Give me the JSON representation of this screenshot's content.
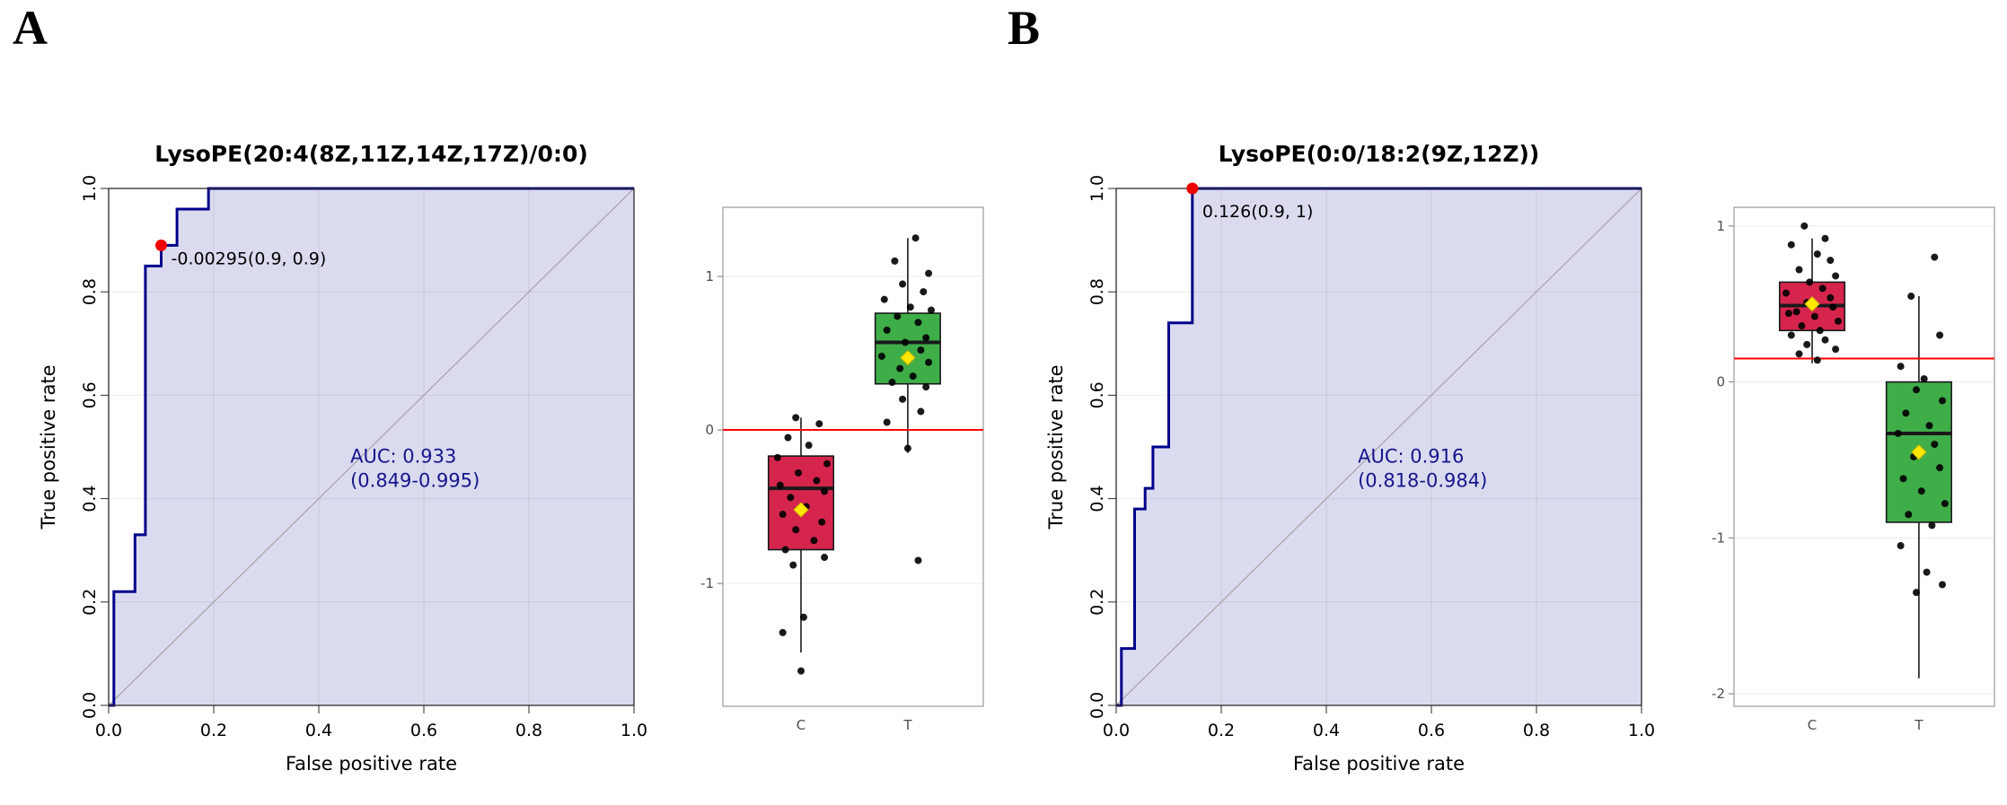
{
  "figure": {
    "background": "#ffffff"
  },
  "panels": [
    {
      "label": "A"
    },
    {
      "label": "B"
    }
  ],
  "colors": {
    "roc_line": "#00008b",
    "roc_fill": "#dbdbf0",
    "diagonal_line": "#a8a8a8",
    "grid_line": "rgba(0,0,0,0.08)",
    "cutoff_point": "#f00000",
    "auc_text": "#16168c",
    "box_border": "#999999",
    "box_tick_text": "#4d4d4d",
    "group_c_fill": "#d6254d",
    "group_t_fill": "#3fae49",
    "mean_diamond": "#ffe800",
    "reference_line": "#ff0000",
    "point_fill": "#000000"
  },
  "chart_data": [
    {
      "type": "line",
      "subtype": "roc",
      "panel": "A",
      "title": "LysoPE(20:4(8Z,11Z,14Z,17Z)/0:0)",
      "xlabel": "False positive rate",
      "ylabel": "True positive rate",
      "xlim": [
        0,
        1
      ],
      "ylim": [
        0,
        1
      ],
      "xticks": [
        0,
        0.2,
        0.4,
        0.6,
        0.8,
        1
      ],
      "xtick_labels": [
        "0.0",
        "0.2",
        "0.4",
        "0.6",
        "0.8",
        "1.0"
      ],
      "yticks": [
        0,
        0.2,
        0.4,
        0.6,
        0.8,
        1
      ],
      "ytick_labels": [
        "0.0",
        "0.2",
        "0.4",
        "0.6",
        "0.8",
        "1.0"
      ],
      "grid": true,
      "diagonal": true,
      "legend_position": "none",
      "curve": [
        [
          0,
          0
        ],
        [
          0.01,
          0
        ],
        [
          0.01,
          0.22
        ],
        [
          0.05,
          0.22
        ],
        [
          0.05,
          0.33
        ],
        [
          0.07,
          0.33
        ],
        [
          0.07,
          0.85
        ],
        [
          0.1,
          0.85
        ],
        [
          0.1,
          0.89
        ],
        [
          0.13,
          0.89
        ],
        [
          0.13,
          0.96
        ],
        [
          0.19,
          0.96
        ],
        [
          0.19,
          1
        ],
        [
          1,
          1
        ]
      ],
      "cutoff": {
        "label": "-0.00295(0.9, 0.9)",
        "x": 0.1,
        "y": 0.89
      },
      "auc": {
        "line1": "AUC: 0.933",
        "line2": "(0.849-0.995)",
        "x": 0.46,
        "y": 0.47
      }
    },
    {
      "type": "box",
      "panel": "A",
      "ylim": [
        -1.8,
        1.45
      ],
      "yticks": [
        -1,
        0,
        1
      ],
      "ytick_labels": [
        "-1",
        "0",
        "1"
      ],
      "reference_line_y": 0,
      "categories": [
        "C",
        "T"
      ],
      "groups": [
        {
          "label": "C",
          "fill": "group_c_fill",
          "center": 0.3,
          "q1": -0.78,
          "median": -0.38,
          "q3": -0.17,
          "whisker_low": -1.45,
          "whisker_high": 0.08,
          "mean": -0.52,
          "points": [
            [
              -0.02,
              0.08
            ],
            [
              0.07,
              0.04
            ],
            [
              -0.05,
              -0.05
            ],
            [
              0.03,
              -0.1
            ],
            [
              -0.09,
              -0.18
            ],
            [
              0.1,
              -0.22
            ],
            [
              -0.01,
              -0.28
            ],
            [
              0.06,
              -0.33
            ],
            [
              -0.08,
              -0.36
            ],
            [
              0.09,
              -0.4
            ],
            [
              -0.04,
              -0.44
            ],
            [
              0.02,
              -0.5
            ],
            [
              -0.07,
              -0.55
            ],
            [
              0.08,
              -0.6
            ],
            [
              -0.02,
              -0.65
            ],
            [
              0.05,
              -0.72
            ],
            [
              -0.06,
              -0.78
            ],
            [
              0.09,
              -0.83
            ],
            [
              -0.03,
              -0.88
            ],
            [
              0.01,
              -1.22
            ],
            [
              -0.07,
              -1.32
            ],
            [
              0,
              -1.57
            ]
          ]
        },
        {
          "label": "T",
          "fill": "group_t_fill",
          "center": 0.71,
          "q1": 0.3,
          "median": 0.57,
          "q3": 0.76,
          "whisker_low": -0.15,
          "whisker_high": 1.25,
          "mean": 0.47,
          "points": [
            [
              0.03,
              1.25
            ],
            [
              -0.05,
              1.1
            ],
            [
              0.08,
              1.02
            ],
            [
              -0.02,
              0.95
            ],
            [
              0.06,
              0.9
            ],
            [
              -0.09,
              0.85
            ],
            [
              0.01,
              0.8
            ],
            [
              0.09,
              0.78
            ],
            [
              -0.04,
              0.74
            ],
            [
              0.04,
              0.7
            ],
            [
              -0.08,
              0.65
            ],
            [
              0.07,
              0.6
            ],
            [
              -0.01,
              0.57
            ],
            [
              0.05,
              0.52
            ],
            [
              -0.1,
              0.48
            ],
            [
              0.08,
              0.44
            ],
            [
              -0.03,
              0.4
            ],
            [
              0.02,
              0.35
            ],
            [
              -0.06,
              0.31
            ],
            [
              0.07,
              0.28
            ],
            [
              -0.02,
              0.2
            ],
            [
              0.05,
              0.12
            ],
            [
              -0.08,
              0.05
            ],
            [
              0,
              -0.12
            ],
            [
              0.04,
              -0.85
            ]
          ]
        }
      ]
    },
    {
      "type": "line",
      "subtype": "roc",
      "panel": "B",
      "title": "LysoPE(0:0/18:2(9Z,12Z))",
      "xlabel": "False positive rate",
      "ylabel": "True positive rate",
      "xlim": [
        0,
        1
      ],
      "ylim": [
        0,
        1
      ],
      "xticks": [
        0,
        0.2,
        0.4,
        0.6,
        0.8,
        1
      ],
      "xtick_labels": [
        "0.0",
        "0.2",
        "0.4",
        "0.6",
        "0.8",
        "1.0"
      ],
      "yticks": [
        0,
        0.2,
        0.4,
        0.6,
        0.8,
        1
      ],
      "ytick_labels": [
        "0.0",
        "0.2",
        "0.4",
        "0.6",
        "0.8",
        "1.0"
      ],
      "grid": true,
      "diagonal": true,
      "legend_position": "none",
      "curve": [
        [
          0,
          0
        ],
        [
          0.01,
          0
        ],
        [
          0.01,
          0.11
        ],
        [
          0.035,
          0.11
        ],
        [
          0.035,
          0.38
        ],
        [
          0.055,
          0.38
        ],
        [
          0.055,
          0.42
        ],
        [
          0.07,
          0.42
        ],
        [
          0.07,
          0.5
        ],
        [
          0.1,
          0.5
        ],
        [
          0.1,
          0.74
        ],
        [
          0.145,
          0.74
        ],
        [
          0.145,
          1
        ],
        [
          1,
          1
        ]
      ],
      "cutoff": {
        "label": "0.126(0.9, 1)",
        "x": 0.145,
        "y": 1
      },
      "auc": {
        "line1": "AUC: 0.916",
        "line2": "(0.818-0.984)",
        "x": 0.46,
        "y": 0.47
      }
    },
    {
      "type": "box",
      "panel": "B",
      "ylim": [
        -2.08,
        1.12
      ],
      "yticks": [
        -2,
        -1,
        0,
        1
      ],
      "ytick_labels": [
        "-2",
        "-1",
        "0",
        "1"
      ],
      "reference_line_y": 0.15,
      "categories": [
        "C",
        "T"
      ],
      "groups": [
        {
          "label": "C",
          "fill": "group_c_fill",
          "center": 0.3,
          "q1": 0.33,
          "median": 0.49,
          "q3": 0.64,
          "whisker_low": 0.12,
          "whisker_high": 0.92,
          "mean": 0.5,
          "points": [
            [
              -0.03,
              1.0
            ],
            [
              0.05,
              0.92
            ],
            [
              -0.08,
              0.88
            ],
            [
              0.02,
              0.82
            ],
            [
              0.07,
              0.78
            ],
            [
              -0.05,
              0.72
            ],
            [
              0.09,
              0.68
            ],
            [
              -0.01,
              0.64
            ],
            [
              0.04,
              0.6
            ],
            [
              -0.1,
              0.57
            ],
            [
              0.07,
              0.54
            ],
            [
              -0.02,
              0.51
            ],
            [
              0.08,
              0.48
            ],
            [
              -0.06,
              0.45
            ],
            [
              0.01,
              0.42
            ],
            [
              0.1,
              0.39
            ],
            [
              -0.04,
              0.36
            ],
            [
              0.03,
              0.33
            ],
            [
              -0.08,
              0.3
            ],
            [
              0.05,
              0.27
            ],
            [
              -0.02,
              0.24
            ],
            [
              0.09,
              0.21
            ],
            [
              -0.05,
              0.18
            ],
            [
              0.02,
              0.14
            ],
            [
              -0.09,
              0.44
            ]
          ]
        },
        {
          "label": "T",
          "fill": "group_t_fill",
          "center": 0.71,
          "q1": -0.9,
          "median": -0.33,
          "q3": 0,
          "whisker_low": -1.9,
          "whisker_high": 0.55,
          "mean": -0.45,
          "points": [
            [
              0.06,
              0.8
            ],
            [
              -0.03,
              0.55
            ],
            [
              0.08,
              0.3
            ],
            [
              -0.07,
              0.1
            ],
            [
              0.02,
              0.02
            ],
            [
              -0.01,
              -0.05
            ],
            [
              0.09,
              -0.12
            ],
            [
              -0.05,
              -0.2
            ],
            [
              0.04,
              -0.28
            ],
            [
              -0.08,
              -0.33
            ],
            [
              0.06,
              -0.4
            ],
            [
              -0.02,
              -0.48
            ],
            [
              0.08,
              -0.55
            ],
            [
              -0.06,
              -0.62
            ],
            [
              0.01,
              -0.7
            ],
            [
              0.1,
              -0.78
            ],
            [
              -0.04,
              -0.85
            ],
            [
              0.05,
              -0.92
            ],
            [
              -0.07,
              -1.05
            ],
            [
              0.03,
              -1.22
            ],
            [
              0.09,
              -1.3
            ],
            [
              -0.01,
              -1.35
            ]
          ]
        }
      ]
    }
  ]
}
